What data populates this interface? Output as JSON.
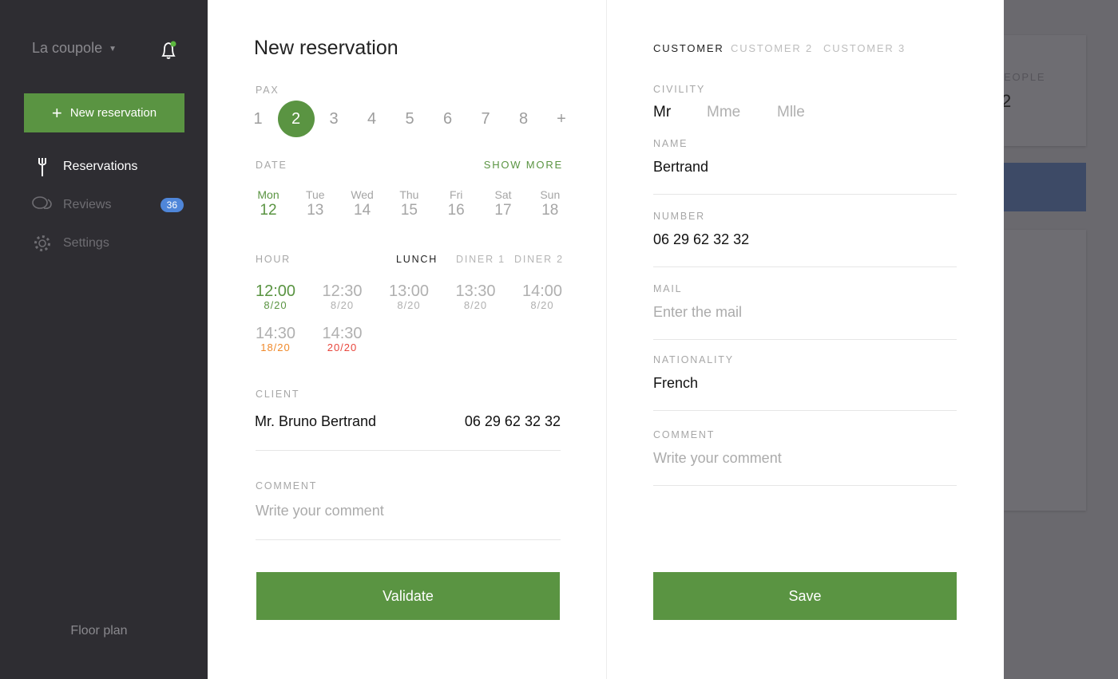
{
  "sidebar": {
    "venue": "La coupole",
    "new_reservation": "New reservation",
    "items": [
      {
        "label": "Reservations",
        "icon": "fork-icon"
      },
      {
        "label": "Reviews",
        "icon": "chat-icon",
        "badge": "36"
      },
      {
        "label": "Settings",
        "icon": "gear-icon"
      }
    ],
    "floor_plan": "Floor plan"
  },
  "reservation": {
    "title": "New reservation",
    "pax_label": "PAX",
    "pax": [
      "1",
      "2",
      "3",
      "4",
      "5",
      "6",
      "7",
      "8",
      "+"
    ],
    "pax_selected": "2",
    "date_label": "DATE",
    "show_more": "SHOW MORE",
    "days": [
      {
        "name": "Mon",
        "num": "12"
      },
      {
        "name": "Tue",
        "num": "13"
      },
      {
        "name": "Wed",
        "num": "14"
      },
      {
        "name": "Thu",
        "num": "15"
      },
      {
        "name": "Fri",
        "num": "16"
      },
      {
        "name": "Sat",
        "num": "17"
      },
      {
        "name": "Sun",
        "num": "18"
      }
    ],
    "hour_label": "HOUR",
    "services": [
      "LUNCH",
      "DINER 1",
      "DINER 2"
    ],
    "slots": [
      {
        "time": "12:00",
        "count": "8/20"
      },
      {
        "time": "12:30",
        "count": "8/20"
      },
      {
        "time": "13:00",
        "count": "8/20"
      },
      {
        "time": "13:30",
        "count": "8/20"
      },
      {
        "time": "14:00",
        "count": "8/20"
      },
      {
        "time": "14:30",
        "count": "18/20"
      },
      {
        "time": "14:30",
        "count": "20/20"
      }
    ],
    "client_label": "CLIENT",
    "client_name": "Mr. Bruno Bertrand",
    "client_phone": "06 29 62 32 32",
    "comment_label": "COMMENT",
    "comment_placeholder": "Write your comment",
    "validate": "Validate"
  },
  "customer": {
    "tabs": [
      "CUSTOMER",
      "CUSTOMER 2",
      "CUSTOMER 3"
    ],
    "civility_label": "CIVILITY",
    "civility": [
      "Mr",
      "Mme",
      "Mlle"
    ],
    "name_label": "NAME",
    "name": "Bertrand",
    "number_label": "NUMBER",
    "number": "06 29 62 32 32",
    "mail_label": "MAIL",
    "mail_placeholder": "Enter the mail",
    "nationality_label": "NATIONALITY",
    "nationality": "French",
    "comment_label": "COMMENT",
    "comment_placeholder": "Write your comment",
    "save": "Save"
  },
  "background": {
    "card_label": "EOPLE",
    "card_value": "2"
  },
  "colors": {
    "accent": "#5a9442",
    "warning": "#f0892a",
    "danger": "#e8463c",
    "badge": "#4f86d9"
  }
}
